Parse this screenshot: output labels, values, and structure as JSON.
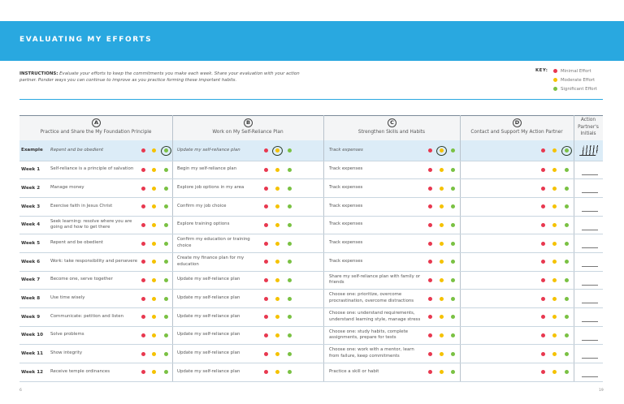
{
  "header": {
    "title": "EVALUATING MY EFFORTS"
  },
  "instructions": {
    "label": "INSTRUCTIONS:",
    "text": "Evaluate your efforts to keep the commitments you make each week. Share your evaluation with your action partner. Ponder ways you can continue to improve as you practice forming these important habits."
  },
  "key": {
    "label": "KEY:",
    "items": [
      {
        "label": "Minimal Effort",
        "color": "#e8384f"
      },
      {
        "label": "Moderate Effort",
        "color": "#f5c200"
      },
      {
        "label": "Significant Effort",
        "color": "#7ac143"
      }
    ]
  },
  "table": {
    "columns": [
      {
        "letter": "A",
        "title": "Practice and Share the My Foundation Principle"
      },
      {
        "letter": "B",
        "title": "Work on My Self-Reliance Plan"
      },
      {
        "letter": "C",
        "title": "Strengthen Skills and Habits"
      },
      {
        "letter": "D",
        "title": "Contact and Support My Action Partner"
      },
      {
        "title": "Action Partner's Initials"
      }
    ],
    "example": {
      "label": "Example",
      "cells": [
        "Repent and be obedient",
        "Update my self-reliance plan",
        "Track expenses"
      ],
      "selected": [
        2,
        1,
        1,
        2
      ]
    },
    "rows": [
      {
        "label": "Week 1",
        "cells": [
          "Self-reliance is a principle of salvation",
          "Begin my self-reliance plan",
          "Track expenses"
        ]
      },
      {
        "label": "Week 2",
        "cells": [
          "Manage money",
          "Explore job options in my area",
          "Track expenses"
        ]
      },
      {
        "label": "Week 3",
        "cells": [
          "Exercise faith in Jesus Christ",
          "Confirm my job choice",
          "Track expenses"
        ]
      },
      {
        "label": "Week 4",
        "cells": [
          "Seek learning: resolve where you are going and how to get there",
          "Explore training options",
          "Track expenses"
        ]
      },
      {
        "label": "Week 5",
        "cells": [
          "Repent and be obedient",
          "Confirm my education or training choice",
          "Track expenses"
        ]
      },
      {
        "label": "Week 6",
        "cells": [
          "Work: take responsibility and persevere",
          "Create my finance plan for my education",
          "Track expenses"
        ]
      },
      {
        "label": "Week 7",
        "cells": [
          "Become one, serve together",
          "Update my self-reliance plan",
          "Share my self-reliance plan with family or friends"
        ]
      },
      {
        "label": "Week 8",
        "cells": [
          "Use time wisely",
          "Update my self-reliance plan",
          "Choose one: prioritize, overcome procrastination, overcome distractions"
        ]
      },
      {
        "label": "Week 9",
        "cells": [
          "Communicate: petition and listen",
          "Update my self-reliance plan",
          "Choose one: understand requirements, understand learning style, manage stress"
        ]
      },
      {
        "label": "Week 10",
        "cells": [
          "Solve problems",
          "Update my self-reliance plan",
          "Choose one: study habits, complete assignments, prepare for tests"
        ]
      },
      {
        "label": "Week 11",
        "cells": [
          "Show integrity",
          "Update my self-reliance plan",
          "Choose one: work with a mentor, learn from failure, keep commitments"
        ]
      },
      {
        "label": "Week 12",
        "cells": [
          "Receive temple ordinances",
          "Update my self-reliance plan",
          "Practice a skill or habit"
        ]
      }
    ]
  },
  "footer": {
    "left": "6",
    "right": "19"
  }
}
